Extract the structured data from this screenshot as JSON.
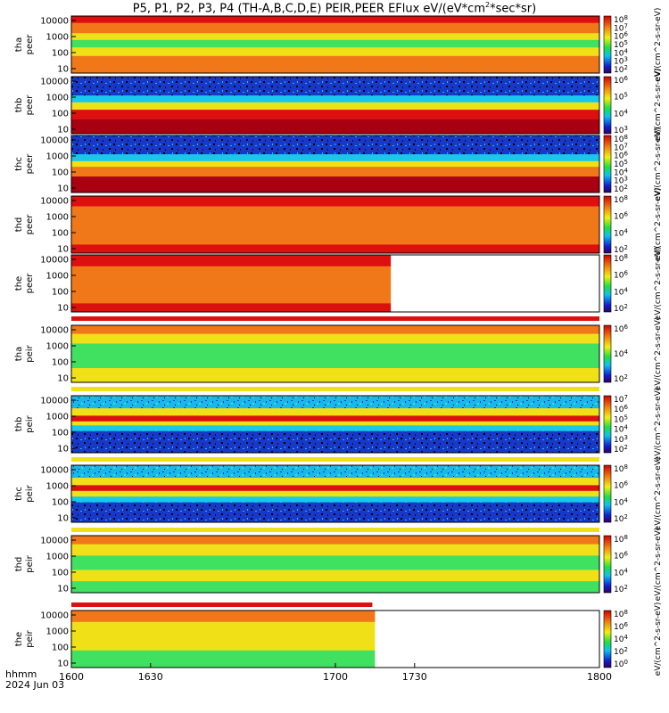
{
  "title": {
    "prefix": "P5, P1, P2, P3, P4 (TH-A,B,C,D,E) PEIR,PEER EFlux eV/(eV*cm",
    "sup": "2",
    "suffix": "*sec*sr)"
  },
  "footer": {
    "hhmm": "hhmm",
    "date": "2024 Jun 03"
  },
  "chart_data": {
    "type": "heatmap",
    "x_ticks": [
      "1600",
      "1630",
      "1700",
      "1730",
      "1800"
    ],
    "x_range": [
      1600,
      1800
    ],
    "colors": {
      "red": "#dd1010",
      "orange": "#f07818",
      "yellow": "#f0e018",
      "green": "#40e060",
      "cyan": "#18c8e8",
      "blue": "#1830d0",
      "darkred": "#a80010",
      "black": "#000000",
      "white": "#ffffff"
    },
    "panels": [
      {
        "probe": "tha",
        "species": "peer",
        "yticks": [
          "10000",
          "1000",
          "100",
          "10"
        ],
        "cbar_ticks": [
          "8",
          "7",
          "6",
          "5",
          "4",
          "3",
          "2"
        ],
        "data_end": 1800
      },
      {
        "probe": "thb",
        "species": "peer",
        "yticks": [
          "10000",
          "1000",
          "100",
          "10"
        ],
        "cbar_ticks": [
          "6",
          "5",
          "4",
          "3"
        ],
        "data_end": 1800
      },
      {
        "probe": "thc",
        "species": "peer",
        "yticks": [
          "10000",
          "1000",
          "100",
          "10"
        ],
        "cbar_ticks": [
          "8",
          "7",
          "6",
          "5",
          "4",
          "3",
          "2"
        ],
        "data_end": 1800
      },
      {
        "probe": "thd",
        "species": "peer",
        "yticks": [
          "10000",
          "1000",
          "100",
          "10"
        ],
        "cbar_ticks": [
          "8",
          "6",
          "4",
          "2"
        ],
        "data_end": 1800
      },
      {
        "probe": "the",
        "species": "peer",
        "yticks": [
          "10000",
          "1000",
          "100",
          "10"
        ],
        "cbar_ticks": [
          "8",
          "6",
          "4",
          "2"
        ],
        "data_end": 1721
      },
      {
        "probe": "tha",
        "species": "peir",
        "yticks": [
          "10000",
          "1000",
          "100",
          "10"
        ],
        "cbar_ticks": [
          "6",
          "4",
          "2"
        ],
        "data_end": 1800
      },
      {
        "probe": "thb",
        "species": "peir",
        "yticks": [
          "10000",
          "1000",
          "100",
          "10"
        ],
        "cbar_ticks": [
          "7",
          "6",
          "5",
          "4",
          "3",
          "2"
        ],
        "data_end": 1800
      },
      {
        "probe": "thc",
        "species": "peir",
        "yticks": [
          "10000",
          "1000",
          "100",
          "10"
        ],
        "cbar_ticks": [
          "8",
          "6",
          "4",
          "2"
        ],
        "data_end": 1800
      },
      {
        "probe": "thd",
        "species": "peir",
        "yticks": [
          "10000",
          "1000",
          "100",
          "10"
        ],
        "cbar_ticks": [
          "8",
          "6",
          "4",
          "2"
        ],
        "data_end": 1800
      },
      {
        "probe": "the",
        "species": "peir",
        "yticks": [
          "10000",
          "1000",
          "100",
          "10"
        ],
        "cbar_ticks": [
          "8",
          "6",
          "4",
          "2",
          "0"
        ],
        "data_end": 1715
      }
    ],
    "colorbar_title": "eV/(cm^2-s-sr-eV)"
  }
}
